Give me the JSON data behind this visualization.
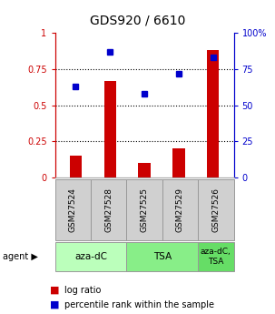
{
  "title": "GDS920 / 6610",
  "samples": [
    "GSM27524",
    "GSM27528",
    "GSM27525",
    "GSM27529",
    "GSM27526"
  ],
  "log_ratio": [
    0.15,
    0.67,
    0.1,
    0.2,
    0.88
  ],
  "percentile_rank": [
    0.63,
    0.87,
    0.58,
    0.72,
    0.83
  ],
  "agent_groups": [
    {
      "label": "aza-dC",
      "start": 0,
      "end": 2,
      "color": "#bbffbb"
    },
    {
      "label": "TSA",
      "start": 2,
      "end": 4,
      "color": "#88ee88"
    },
    {
      "label": "aza-dC,\nTSA",
      "start": 4,
      "end": 5,
      "color": "#66dd66"
    }
  ],
  "bar_color": "#cc0000",
  "marker_color": "#0000cc",
  "left_axis_color": "#cc0000",
  "right_axis_color": "#0000cc",
  "yticks_left": [
    0,
    0.25,
    0.5,
    0.75,
    1.0
  ],
  "ytick_labels_left": [
    "0",
    "0.25",
    "0.5",
    "0.75",
    "1"
  ],
  "ytick_labels_right": [
    "0",
    "25",
    "50",
    "75",
    "100%"
  ],
  "background_color": "#ffffff",
  "grid_color": "#000000",
  "bar_width": 0.35
}
